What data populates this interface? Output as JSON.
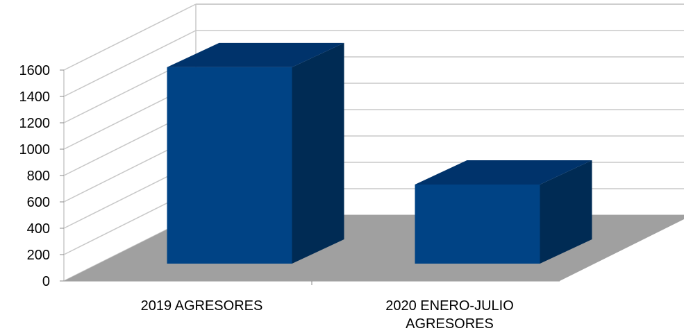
{
  "chart_data": {
    "type": "bar",
    "categories": [
      [
        "2019 AGRESORES"
      ],
      [
        "2020 ENERO-JULIO",
        "AGRESORES"
      ]
    ],
    "values": [
      1490,
      600
    ],
    "ylim": [
      0,
      1600
    ],
    "yticks": [
      "0",
      "200",
      "400",
      "600",
      "800",
      "1000",
      "1200",
      "1400",
      "1600"
    ],
    "grid": true,
    "legend": "none",
    "three_d": true,
    "colors": {
      "bar_front": "#004385",
      "bar_side": "#002B54",
      "bar_top": "#00336B",
      "floor": "#A0A0A0",
      "grid": "#C8C8C8"
    }
  }
}
